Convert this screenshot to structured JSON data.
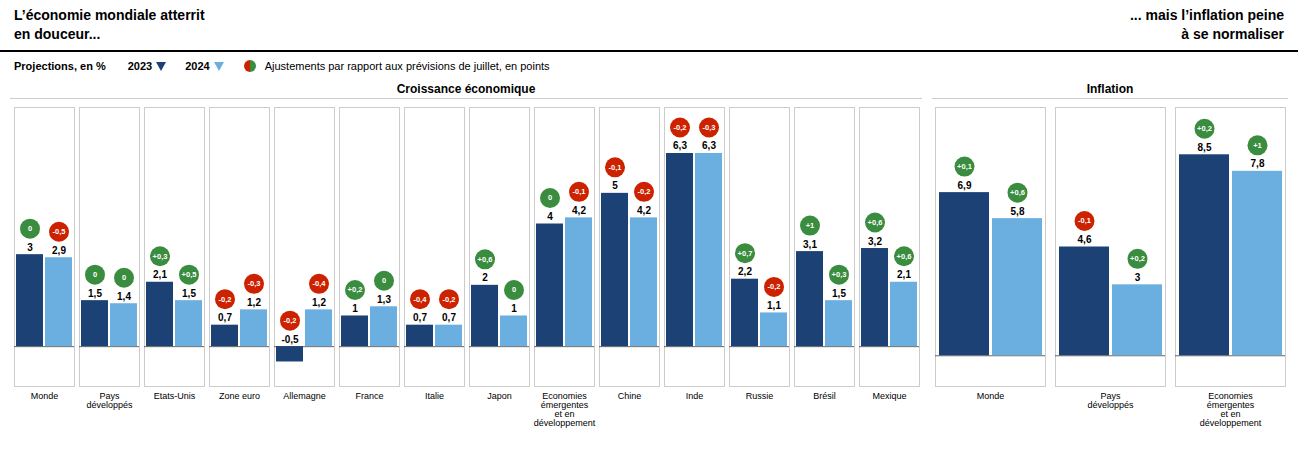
{
  "chart_data": [
    {
      "type": "bar",
      "title": "L’économie mondiale atterrit\nen douceur...",
      "subtitle": "Croissance économique",
      "annotations": [
        "Projections, en %",
        "Ajustements par rapport aux prévisions de juillet, en points"
      ],
      "categories": [
        "Monde",
        "Pays\ndéveloppés",
        "Etats-Unis",
        "Zone euro",
        "Allemagne",
        "France",
        "Italie",
        "Japon",
        "Economies\némergentes\net en\ndéveloppement",
        "Chine",
        "Inde",
        "Russie",
        "Brésil",
        "Mexique"
      ],
      "series": [
        {
          "name": "2023",
          "color": "#1c4175",
          "values": [
            3.0,
            1.5,
            2.1,
            0.7,
            -0.5,
            1.0,
            0.7,
            2.0,
            4.0,
            5.0,
            6.3,
            2.2,
            3.1,
            3.2
          ],
          "value_labels": [
            "3",
            "1,5",
            "2,1",
            "0,7",
            "-0,5",
            "1",
            "0,7",
            "2",
            "4",
            "5",
            "6,3",
            "2,2",
            "3,1",
            "3,2"
          ],
          "adjustments": [
            0.0,
            0.0,
            0.3,
            -0.2,
            -0.2,
            0.2,
            -0.4,
            0.6,
            0.0,
            -0.1,
            -0.2,
            0.7,
            1.0,
            0.6
          ],
          "adjustment_labels": [
            "0",
            "0",
            "+0,3",
            "-0,2",
            "-0,2",
            "+0,2",
            "-0,4",
            "+0,6",
            "0",
            "-0,1",
            "-0,2",
            "+0,7",
            "+1",
            "+0,6"
          ]
        },
        {
          "name": "2024",
          "color": "#6aafe0",
          "values": [
            2.9,
            1.4,
            1.5,
            1.2,
            1.2,
            1.3,
            0.7,
            1.0,
            4.2,
            4.2,
            6.3,
            1.1,
            1.5,
            2.1
          ],
          "value_labels": [
            "2,9",
            "1,4",
            "1,5",
            "1,2",
            "1,2",
            "1,3",
            "0,7",
            "1",
            "4,2",
            "4,2",
            "6,3",
            "1,1",
            "1,5",
            "2,1"
          ],
          "adjustments": [
            -0.5,
            0.0,
            0.5,
            -0.3,
            -0.4,
            0.0,
            -0.2,
            0.0,
            -0.1,
            -0.2,
            -0.3,
            -0.2,
            0.3,
            0.6
          ],
          "adjustment_labels": [
            "-0,5",
            "0",
            "+0,5",
            "-0,3",
            "-0,4",
            "0",
            "-0,2",
            "0",
            "-0,1",
            "-0,2",
            "-0,3",
            "-0,2",
            "+0,3",
            "+0,6"
          ]
        }
      ],
      "adjustment_colors": {
        "positive": "#3a8c3f",
        "negative": "#cc2200"
      },
      "ylim": [
        -1.3,
        7.8
      ],
      "yticks": [],
      "tick_labels": false,
      "grid": false,
      "data_labels": true
    },
    {
      "type": "bar",
      "title": "... mais l’inflation peine\nà se normaliser",
      "subtitle": "Inflation",
      "categories": [
        "Monde",
        "Pays\ndéveloppés",
        "Economies\némergentes\net en\ndéveloppement"
      ],
      "series": [
        {
          "name": "2023",
          "color": "#1c4175",
          "values": [
            6.9,
            4.6,
            8.5
          ],
          "value_labels": [
            "6,9",
            "4,6",
            "8,5"
          ],
          "adjustments": [
            0.1,
            -0.1,
            0.2
          ],
          "adjustment_labels": [
            "+0,1",
            "-0,1",
            "+0,2"
          ]
        },
        {
          "name": "2024",
          "color": "#6aafe0",
          "values": [
            5.8,
            3.0,
            7.8
          ],
          "value_labels": [
            "5,8",
            "3",
            "7,8"
          ],
          "adjustments": [
            0.6,
            0.2,
            1.0
          ],
          "adjustment_labels": [
            "+0,6",
            "+0,2",
            "+1"
          ]
        }
      ],
      "adjustment_colors": {
        "positive": "#3a8c3f",
        "negative": "#cc2200"
      },
      "ylim": [
        -1.3,
        10.5
      ],
      "yticks": [],
      "tick_labels": false,
      "grid": false,
      "data_labels": true
    }
  ]
}
